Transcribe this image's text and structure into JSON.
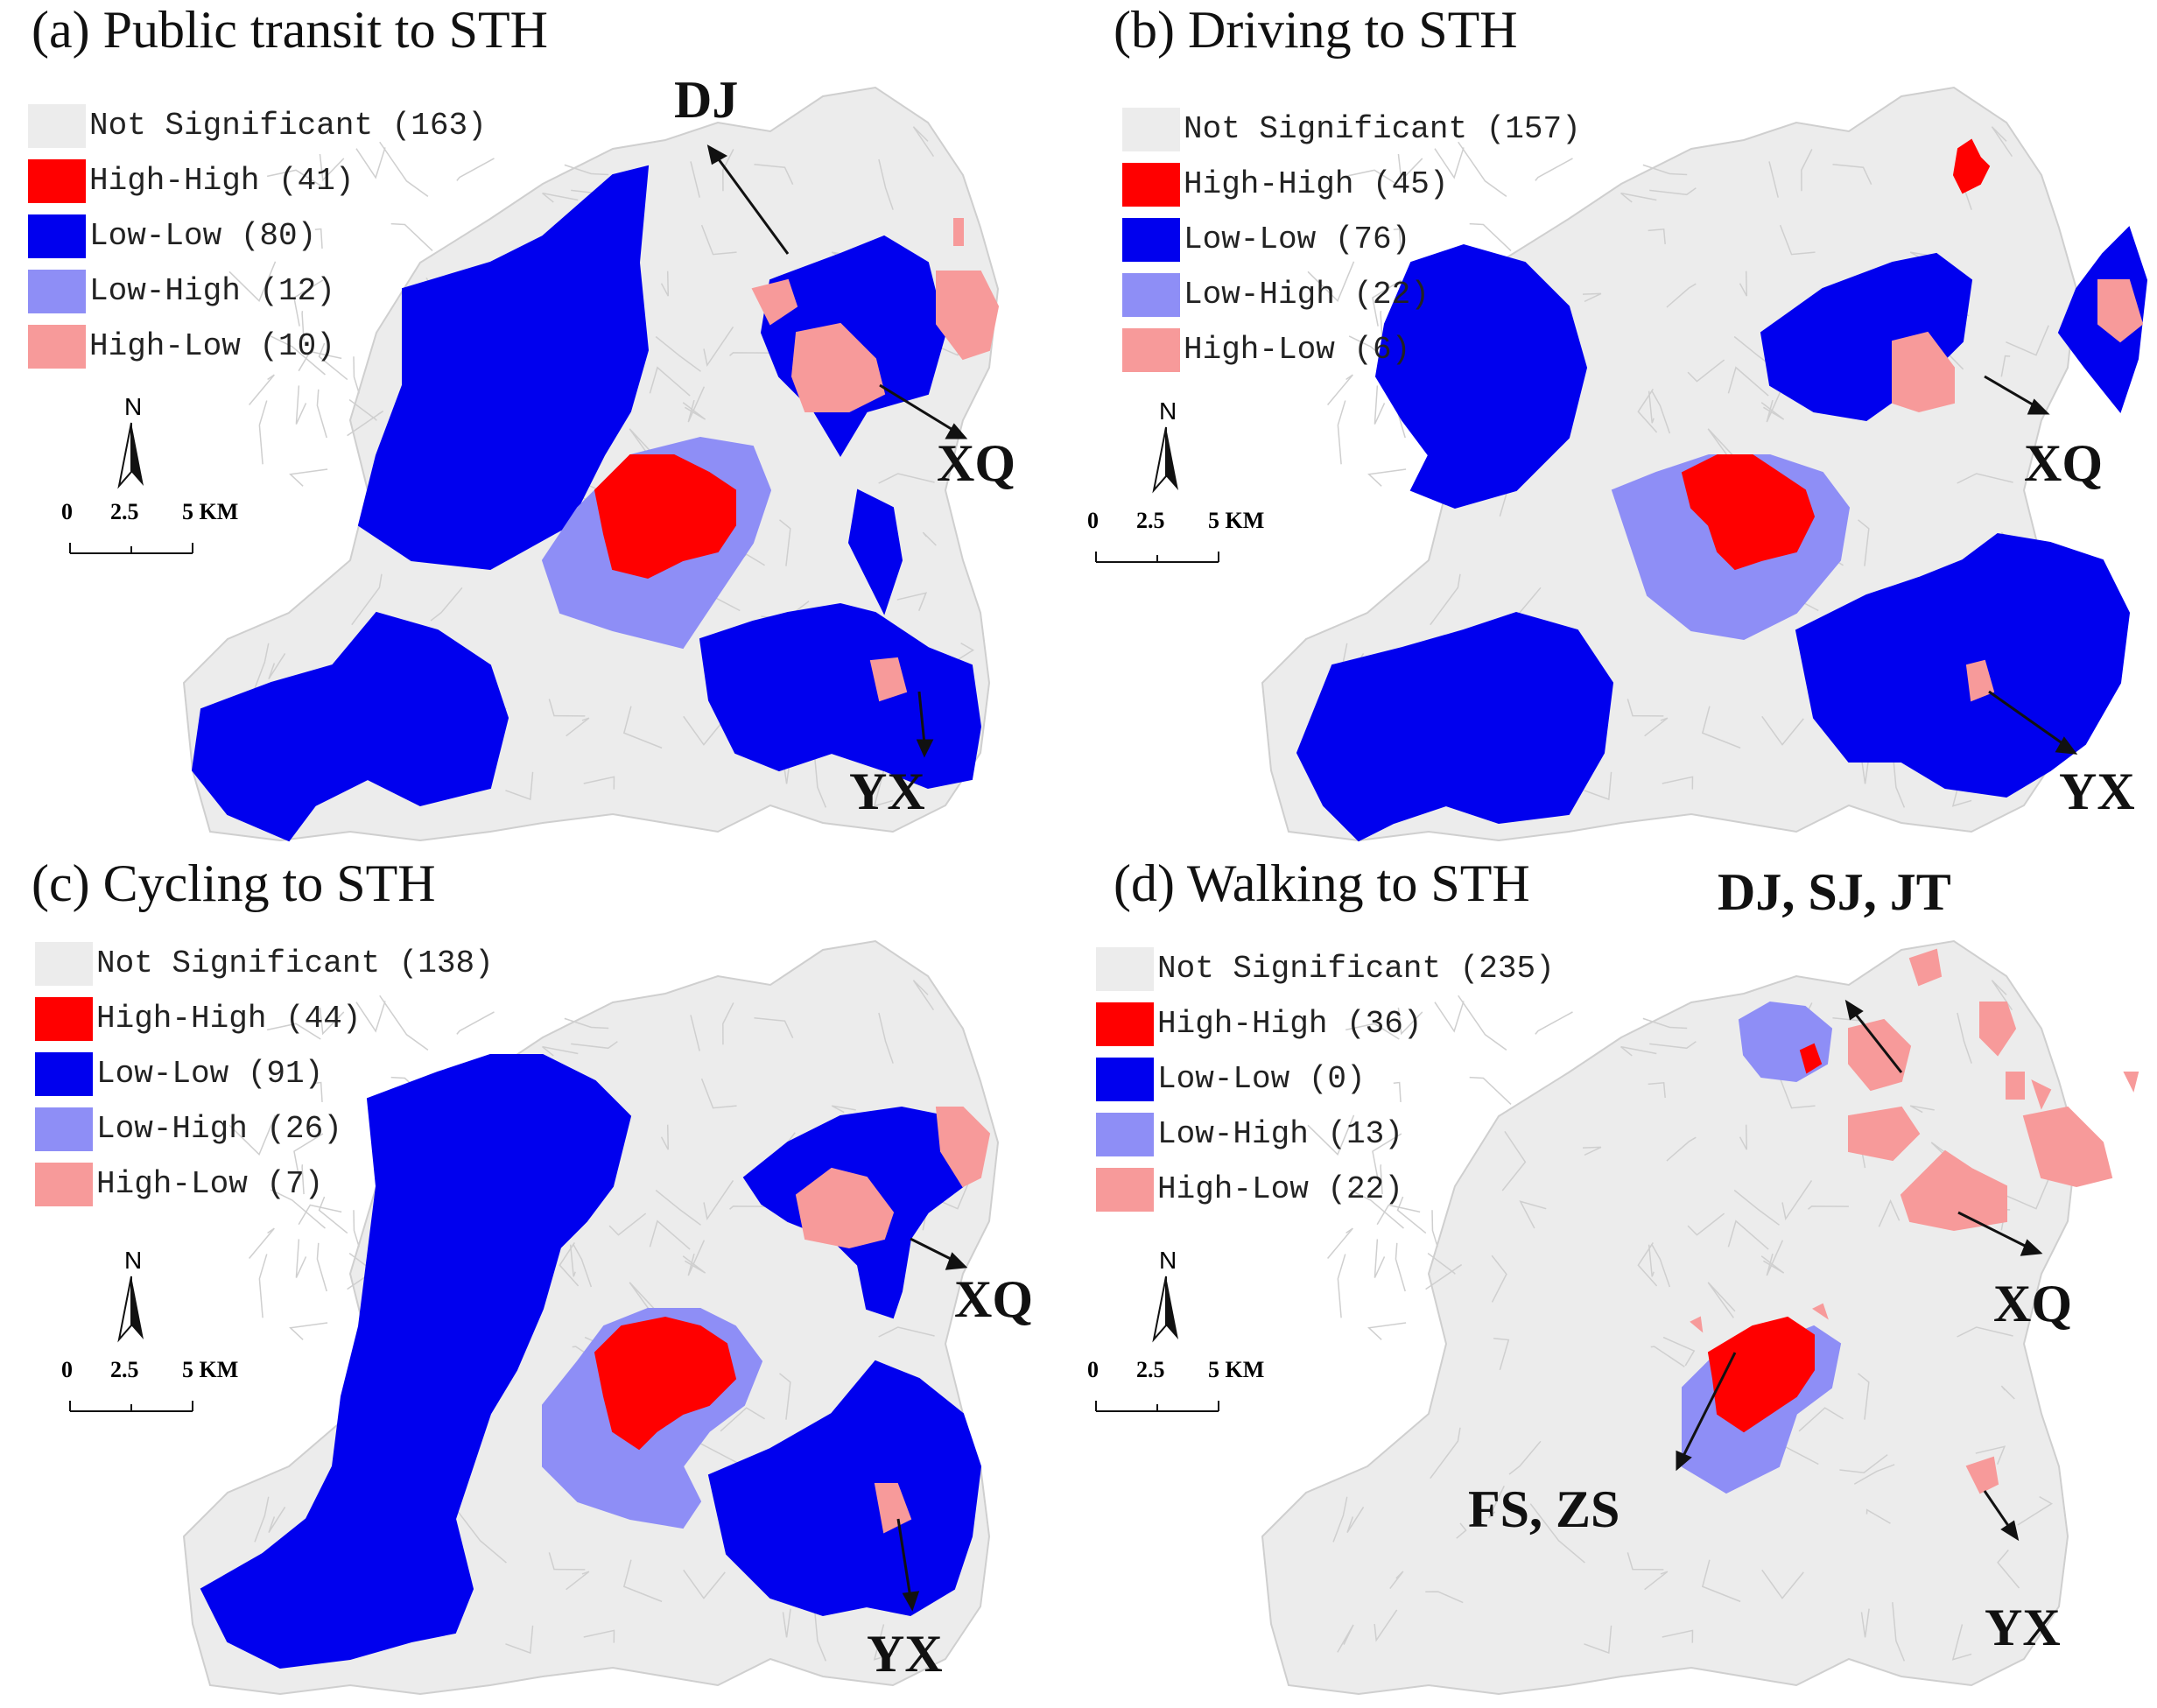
{
  "colors": {
    "not_significant": "#ececec",
    "high_high": "#ff0000",
    "low_low": "#0000ee",
    "low_high": "#8e8ef6",
    "high_low": "#f79a9a",
    "boundary": "#cfcfcf"
  },
  "scale": {
    "north": "N",
    "ticks": [
      "0",
      "2.5",
      "5 KM"
    ]
  },
  "panels": [
    {
      "title": "(a) Public transit to STH",
      "legend": [
        {
          "label": "Not Significant (163)",
          "class": "not_significant"
        },
        {
          "label": "High-High (41)",
          "class": "high_high"
        },
        {
          "label": "Low-Low (80)",
          "class": "low_low"
        },
        {
          "label": "Low-High (12)",
          "class": "low_high"
        },
        {
          "label": "High-Low (10)",
          "class": "high_low"
        }
      ],
      "callouts": [
        "DJ",
        "XQ",
        "YX"
      ]
    },
    {
      "title": "(b) Driving to STH",
      "legend": [
        {
          "label": "Not Significant (157)",
          "class": "not_significant"
        },
        {
          "label": "High-High (45)",
          "class": "high_high"
        },
        {
          "label": "Low-Low (76)",
          "class": "low_low"
        },
        {
          "label": "Low-High (22)",
          "class": "low_high"
        },
        {
          "label": "High-Low (6)",
          "class": "high_low"
        }
      ],
      "callouts": [
        "XQ",
        "YX"
      ]
    },
    {
      "title": "(c) Cycling to STH",
      "legend": [
        {
          "label": "Not Significant (138)",
          "class": "not_significant"
        },
        {
          "label": "High-High (44)",
          "class": "high_high"
        },
        {
          "label": "Low-Low (91)",
          "class": "low_low"
        },
        {
          "label": "Low-High (26)",
          "class": "low_high"
        },
        {
          "label": "High-Low (7)",
          "class": "high_low"
        }
      ],
      "callouts": [
        "XQ",
        "YX"
      ]
    },
    {
      "title": "(d) Walking to STH",
      "legend": [
        {
          "label": "Not Significant (235)",
          "class": "not_significant"
        },
        {
          "label": "High-High (36)",
          "class": "high_high"
        },
        {
          "label": "Low-Low (0)",
          "class": "low_low"
        },
        {
          "label": "Low-High (13)",
          "class": "low_high"
        },
        {
          "label": "High-Low (22)",
          "class": "high_low"
        }
      ],
      "callouts": [
        "DJ, SJ, JT",
        "XQ",
        "FS, ZS",
        "YX"
      ]
    }
  ]
}
